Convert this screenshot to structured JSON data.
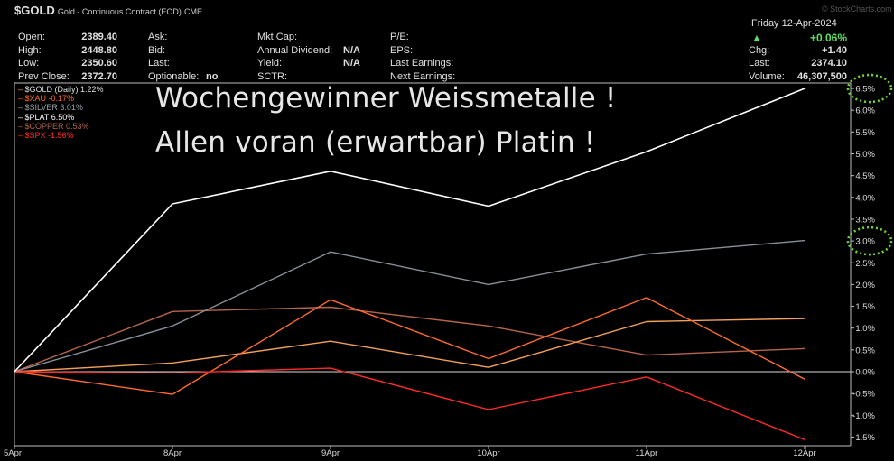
{
  "header": {
    "symbol": "$GOLD",
    "name": "Gold - Continuous Contract (EOD)",
    "exchange": "CME",
    "date": "Friday   12-Apr-2024",
    "open_label": "Open:",
    "open": "2389.40",
    "high_label": "High:",
    "high": "2448.80",
    "low_label": "Low:",
    "low": "2350.60",
    "prevclose_label": "Prev Close:",
    "prevclose": "2372.70",
    "ask_label": "Ask:",
    "bid_label": "Bid:",
    "last_label": "Last:",
    "optionable_label": "Optionable:",
    "optionable": "no",
    "mktcap_label": "Mkt Cap:",
    "dividend_label": "Annual Dividend:",
    "dividend": "N/A",
    "yield_label": "Yield:",
    "yield": "N/A",
    "sctr_label": "SCTR:",
    "pe_label": "P/E:",
    "eps_label": "EPS:",
    "last_earnings_label": "Last Earnings:",
    "next_earnings_label": "Next Earnings:",
    "change_pct": "+0.06%",
    "chg_label": "Chg:",
    "chg": "+1.40",
    "last_right_label": "Last:",
    "last_right": "2374.10",
    "volume_label": "Volume:",
    "volume": "46,307,500"
  },
  "watermark": "© StockCharts.com",
  "annotation": {
    "line1": "Wochengewinner Weissmetalle !",
    "line2": "Allen voran (erwartbar) Platin !"
  },
  "colors": {
    "gold": "#f2a05a",
    "xau": "#ff6a2e",
    "silver": "#8a9099",
    "plat": "#ffffff",
    "copper": "#b5654a",
    "spx": "#ff2a2a",
    "highlight": "#6cd43a",
    "up": "#5ee05e"
  },
  "chart_data": {
    "type": "line",
    "x": [
      "5Apr",
      "8Apr",
      "9Apr",
      "10Apr",
      "11Apr",
      "12Apr"
    ],
    "ylim": [
      -1.6,
      6.7
    ],
    "yticks": [
      "-1.5%",
      "-1.0%",
      "-0.5%",
      "0.0%",
      "0.5%",
      "1.0%",
      "1.5%",
      "2.0%",
      "2.5%",
      "3.0%",
      "3.5%",
      "4.0%",
      "4.5%",
      "5.0%",
      "5.5%",
      "6.0%",
      "6.5%"
    ],
    "grid": false,
    "legend_position": "top-left",
    "series": [
      {
        "name": "$GOLD (Daily) 1.22%",
        "key": "gold",
        "values": [
          0,
          0.2,
          0.7,
          0.1,
          1.15,
          1.22
        ]
      },
      {
        "name": "$XAU -0.17%",
        "key": "xau",
        "values": [
          0,
          -0.52,
          1.65,
          0.3,
          1.7,
          -0.17
        ]
      },
      {
        "name": "$SILVER 3.01%",
        "key": "silver",
        "values": [
          0,
          1.05,
          2.75,
          2.0,
          2.7,
          3.01
        ]
      },
      {
        "name": "$PLAT 6.50%",
        "key": "plat",
        "values": [
          0,
          3.85,
          4.6,
          3.8,
          5.05,
          6.5
        ]
      },
      {
        "name": "$COPPER 0.53%",
        "key": "copper",
        "values": [
          0,
          1.38,
          1.48,
          1.05,
          0.38,
          0.53
        ]
      },
      {
        "name": "$SPX -1.56%",
        "key": "spx",
        "values": [
          0,
          -0.03,
          0.08,
          -0.87,
          -0.12,
          -1.56
        ]
      }
    ]
  }
}
